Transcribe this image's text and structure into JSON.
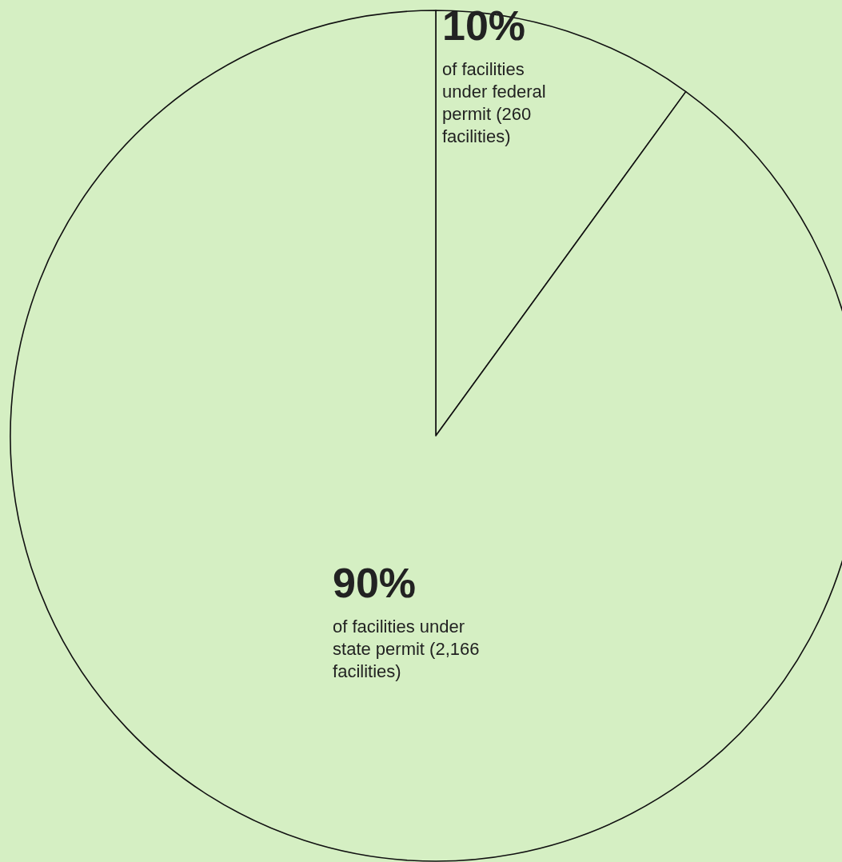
{
  "chart_data": {
    "type": "pie",
    "categories": [
      "of facilities under federal permit (260 facilities)",
      "of facilities under state permit (2,166 facilities)"
    ],
    "values": [
      10,
      90
    ],
    "value_labels": [
      "10%",
      "90%"
    ],
    "colors": [
      "#d5efc3",
      "#d5efc3"
    ]
  }
}
